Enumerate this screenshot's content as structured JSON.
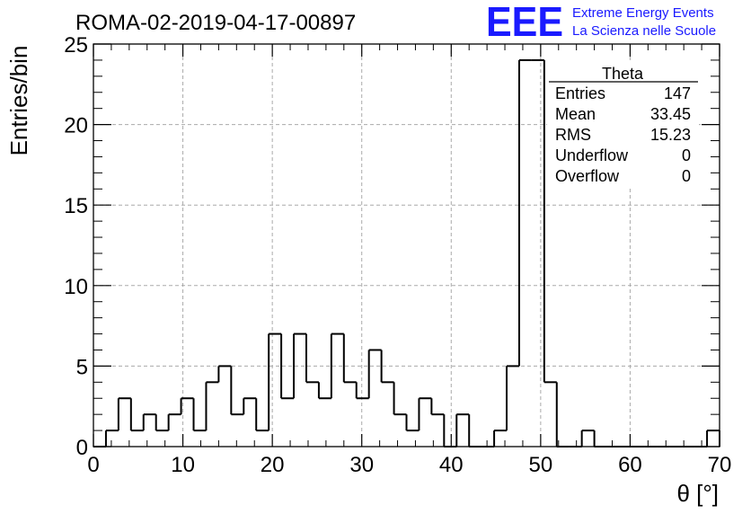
{
  "logo": {
    "mark": "EEE",
    "line1": "Extreme Energy Events",
    "line2": "La Scienza nelle Scuole",
    "color": "#1a1aff"
  },
  "stats": {
    "title": "Theta",
    "rows": [
      {
        "label": "Entries",
        "value": "147"
      },
      {
        "label": "Mean",
        "value": "33.45"
      },
      {
        "label": "RMS",
        "value": "15.23"
      },
      {
        "label": "Underflow",
        "value": "0"
      },
      {
        "label": "Overflow",
        "value": "0"
      }
    ]
  },
  "chart_data": {
    "type": "bar",
    "title": "ROMA-02-2019-04-17-00897",
    "xlabel": "θ [°]",
    "ylabel": "Entries/bin",
    "xlim": [
      0,
      70
    ],
    "ylim": [
      0,
      25
    ],
    "grid": true,
    "legend": "top-right stats box",
    "x_ticks": [
      "0",
      "10",
      "20",
      "30",
      "40",
      "50",
      "60",
      "70"
    ],
    "y_ticks": [
      "0",
      "5",
      "10",
      "15",
      "20",
      "25"
    ],
    "bin_width": 1.4,
    "bin_edges_start": 0,
    "values": [
      0,
      1,
      3,
      1,
      2,
      1,
      2,
      3,
      1,
      4,
      5,
      2,
      3,
      1,
      7,
      3,
      7,
      4,
      3,
      7,
      4,
      3,
      6,
      4,
      2,
      1,
      3,
      2,
      0,
      2,
      0,
      0,
      1,
      5,
      24,
      24,
      4,
      0,
      0,
      1,
      0,
      0,
      0,
      0,
      0,
      0,
      0,
      0,
      0,
      1
    ],
    "line_color": "#000000"
  }
}
